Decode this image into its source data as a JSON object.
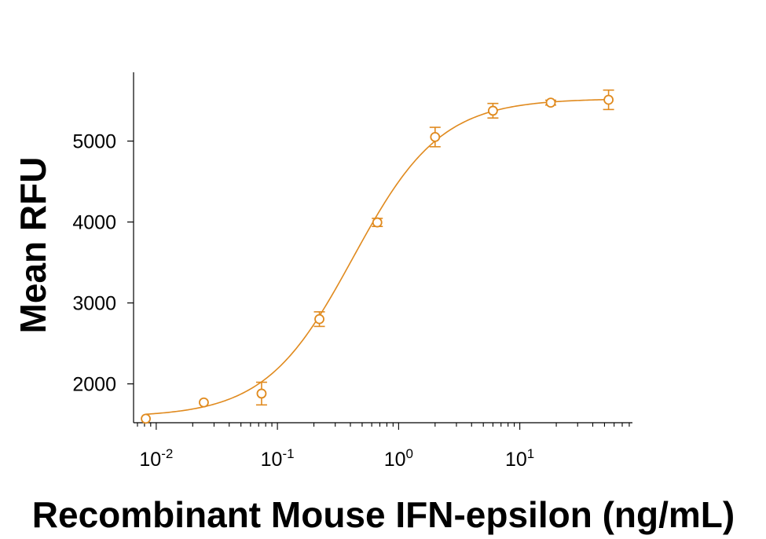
{
  "chart_data": {
    "type": "scatter",
    "title": "",
    "xlabel": "Recombinant Mouse IFN-epsilon (ng/mL)",
    "ylabel": "Mean RFU",
    "x_scale": "log",
    "xlim": [
      0.0065,
      85
    ],
    "ylim": [
      1520,
      5850
    ],
    "grid": false,
    "legend": "none",
    "color": "#E08A1E",
    "x_ticks": [
      {
        "value": 0.01,
        "base": "10",
        "exp": "-2"
      },
      {
        "value": 0.1,
        "base": "10",
        "exp": "-1"
      },
      {
        "value": 1,
        "base": "10",
        "exp": "0"
      },
      {
        "value": 10,
        "base": "10",
        "exp": "1"
      }
    ],
    "y_ticks": [
      2000,
      3000,
      4000,
      5000
    ],
    "series": [
      {
        "x": [
          0.0082,
          0.0247,
          0.074,
          0.222,
          0.667,
          2.0,
          6.0,
          18.0,
          54.0
        ],
        "y": [
          1570,
          1770,
          1880,
          2800,
          3995,
          5050,
          5375,
          5475,
          5510
        ],
        "error": [
          0,
          0,
          140,
          90,
          50,
          120,
          90,
          30,
          120
        ],
        "fit": {
          "bottom": 1590,
          "top": 5525,
          "ec50": 0.42,
          "hill": 1.2
        }
      }
    ]
  }
}
